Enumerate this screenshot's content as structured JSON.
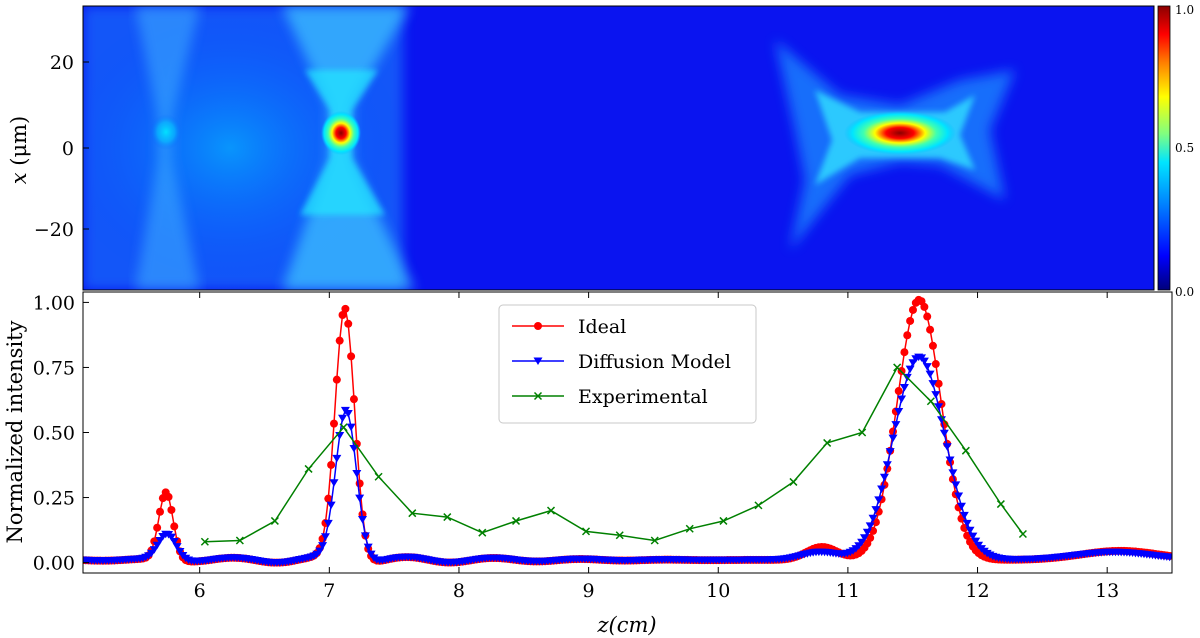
{
  "chart_data": [
    {
      "type": "heatmap",
      "title": "",
      "ylabel_var": "x",
      "ylabel_unit": "(μm)",
      "xlim": [
        5.1,
        13.5
      ],
      "ylim": [
        -35,
        35
      ],
      "yticks": [
        20,
        0,
        -20
      ],
      "ytick_labels": [
        "20",
        "0",
        "−20"
      ],
      "colorbar": {
        "min": 0.0,
        "max": 1.0,
        "ticks": [
          "1.0",
          "0.5",
          "0.0"
        ],
        "tick_values": [
          1.0,
          0.5,
          0.0
        ]
      },
      "colormap": [
        "#00007a",
        "#0000ff",
        "#0080ff",
        "#00e5ff",
        "#80ff80",
        "#ffff00",
        "#ff8000",
        "#ff0000",
        "#8b0000"
      ],
      "foci": [
        {
          "z": 5.75,
          "x": 3,
          "intensity": 0.55
        },
        {
          "z": 7.12,
          "x": 4,
          "intensity": 0.95
        },
        {
          "z": 11.5,
          "x": 4,
          "intensity": 1.0
        }
      ]
    },
    {
      "type": "line",
      "xlabel": "z(cm)",
      "ylabel": "Normalized intensity",
      "xlim": [
        5.1,
        13.5
      ],
      "ylim": [
        -0.04,
        1.04
      ],
      "xticks": [
        6,
        7,
        8,
        9,
        10,
        11,
        12,
        13
      ],
      "yticks": [
        0.0,
        0.25,
        0.5,
        0.75,
        1.0
      ],
      "ytick_labels": [
        "0.00",
        "0.25",
        "0.50",
        "0.75",
        "1.00"
      ],
      "legend_position": "top-center",
      "series": [
        {
          "name": "Ideal",
          "color": "#ff0000",
          "marker": "circle",
          "peaks": [
            {
              "z": 5.74,
              "amp": 0.26,
              "width": 0.055
            },
            {
              "z": 7.12,
              "amp": 0.97,
              "width": 0.075
            },
            {
              "z": 11.55,
              "amp": 1.0,
              "width": 0.17
            },
            {
              "z": 10.8,
              "amp": 0.05,
              "width": 0.12
            },
            {
              "z": 13.1,
              "amp": 0.035,
              "width": 0.3
            }
          ],
          "baseline": 0.01
        },
        {
          "name": "Diffusion Model",
          "color": "#0000ff",
          "marker": "triangle-down",
          "peaks": [
            {
              "z": 5.75,
              "amp": 0.1,
              "width": 0.07
            },
            {
              "z": 7.13,
              "amp": 0.58,
              "width": 0.08
            },
            {
              "z": 11.55,
              "amp": 0.78,
              "width": 0.2
            },
            {
              "z": 10.78,
              "amp": 0.03,
              "width": 0.14
            },
            {
              "z": 13.05,
              "amp": 0.03,
              "width": 0.3
            }
          ],
          "baseline": 0.01
        },
        {
          "name": "Experimental",
          "color": "#008000",
          "marker": "x",
          "x": [
            6.04,
            6.31,
            6.58,
            6.84,
            7.11,
            7.38,
            7.64,
            7.91,
            8.18,
            8.44,
            8.71,
            8.98,
            9.24,
            9.51,
            9.78,
            10.04,
            10.31,
            10.58,
            10.84,
            11.11,
            11.38,
            11.64,
            11.91,
            12.18,
            12.35
          ],
          "values": [
            0.08,
            0.085,
            0.16,
            0.36,
            0.52,
            0.33,
            0.19,
            0.175,
            0.115,
            0.16,
            0.2,
            0.12,
            0.105,
            0.085,
            0.13,
            0.16,
            0.22,
            0.31,
            0.46,
            0.5,
            0.75,
            0.62,
            0.43,
            0.225,
            0.11
          ]
        }
      ]
    }
  ]
}
